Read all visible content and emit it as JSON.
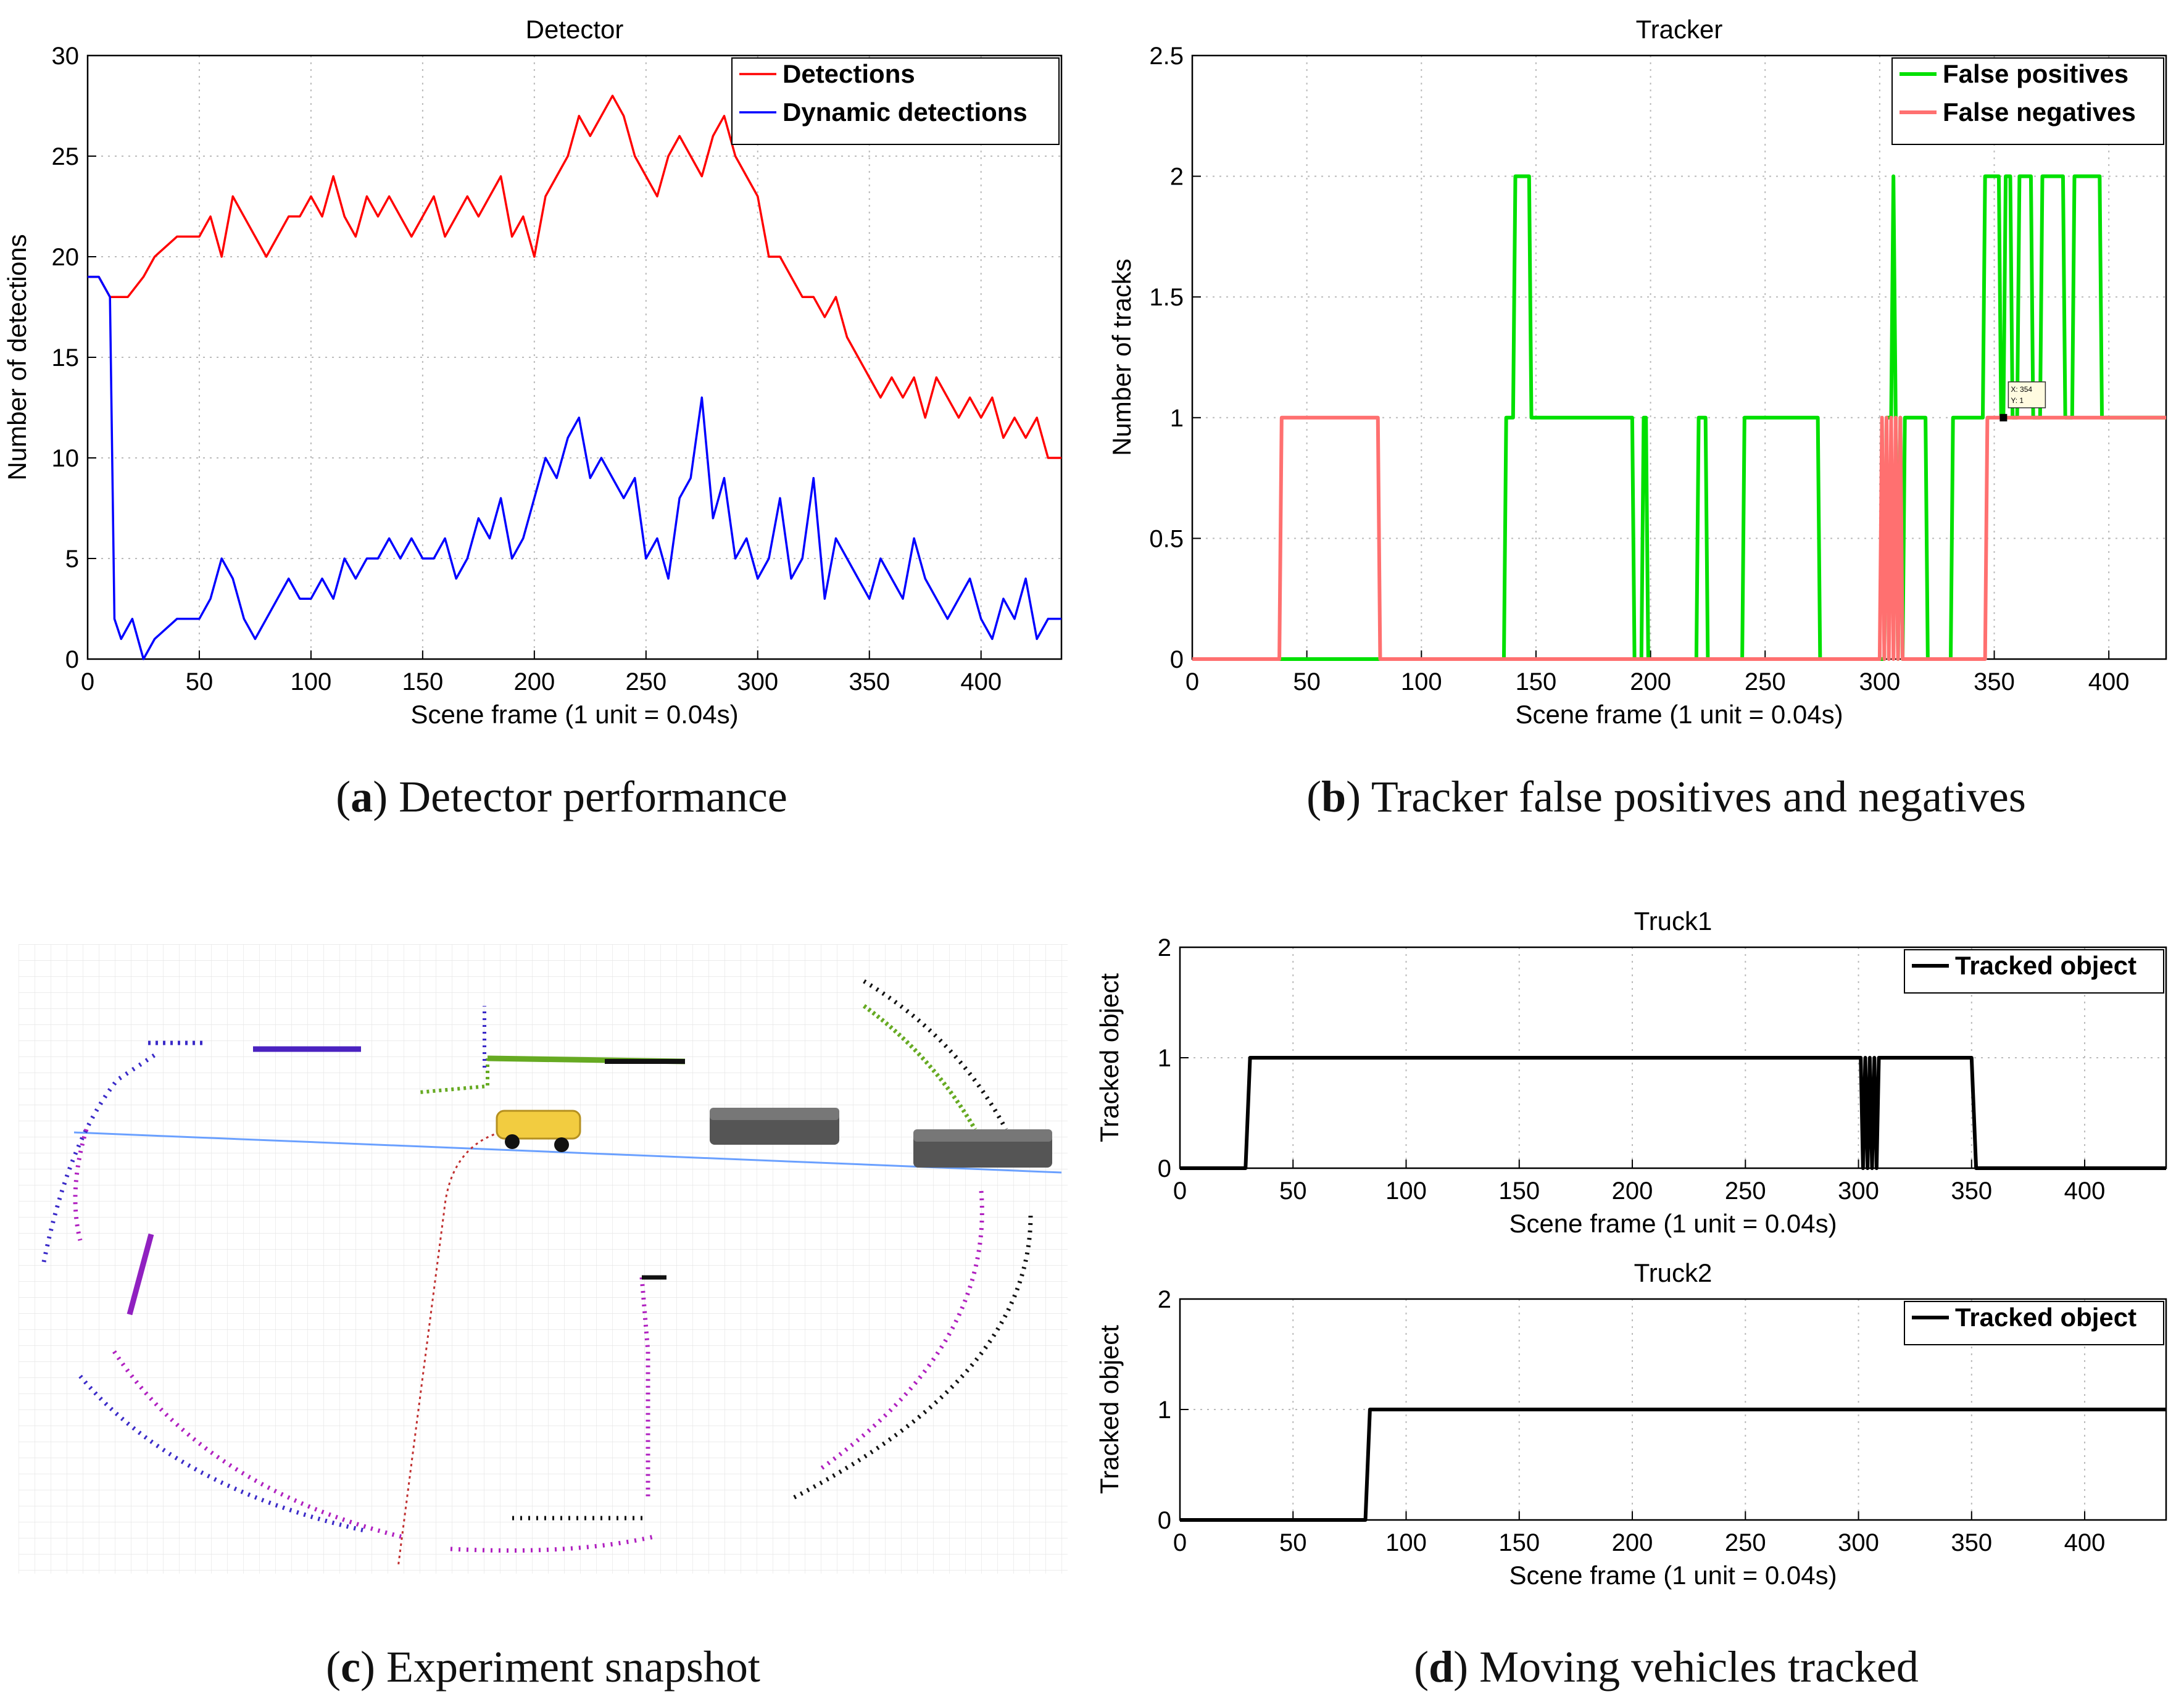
{
  "captions": {
    "a": {
      "label": "a",
      "text": "Detector performance"
    },
    "b": {
      "label": "b",
      "text": "Tracker false positives and negatives"
    },
    "c": {
      "label": "c",
      "text": "Experiment snapshot"
    },
    "d": {
      "label": "d",
      "text": "Moving vehicles tracked"
    }
  },
  "colors": {
    "detections": "#ff0000",
    "dynamic": "#0000ff",
    "false_positives": "#00e000",
    "false_negatives": "#ff7070",
    "tracked": "#000000"
  },
  "chart_data": [
    {
      "id": "detector",
      "type": "line",
      "title": "Detector",
      "xlabel": "Scene frame (1 unit = 0.04s)",
      "ylabel": "Number of detections",
      "xlim": [
        0,
        436
      ],
      "ylim": [
        0,
        30
      ],
      "xticks": [
        0,
        50,
        100,
        150,
        200,
        250,
        300,
        350,
        400
      ],
      "yticks": [
        0,
        5,
        10,
        15,
        20,
        25,
        30
      ],
      "grid": true,
      "legend_position": "top-right",
      "series": [
        {
          "name": "Detections",
          "color": "#ff0000",
          "x": [
            0,
            5,
            10,
            18,
            25,
            30,
            40,
            50,
            55,
            60,
            65,
            70,
            75,
            80,
            85,
            90,
            95,
            100,
            105,
            110,
            115,
            120,
            125,
            130,
            135,
            140,
            145,
            150,
            155,
            160,
            165,
            170,
            175,
            180,
            185,
            190,
            195,
            200,
            205,
            210,
            215,
            220,
            225,
            230,
            235,
            240,
            245,
            250,
            255,
            260,
            265,
            270,
            275,
            280,
            285,
            290,
            295,
            300,
            305,
            310,
            315,
            320,
            325,
            330,
            335,
            340,
            345,
            350,
            355,
            360,
            365,
            370,
            375,
            380,
            385,
            390,
            395,
            400,
            405,
            410,
            415,
            420,
            425,
            430,
            436
          ],
          "y": [
            19,
            19,
            18,
            18,
            19,
            20,
            21,
            21,
            22,
            20,
            23,
            22,
            21,
            20,
            21,
            22,
            22,
            23,
            22,
            24,
            22,
            21,
            23,
            22,
            23,
            22,
            21,
            22,
            23,
            21,
            22,
            23,
            22,
            23,
            24,
            21,
            22,
            20,
            23,
            24,
            25,
            27,
            26,
            27,
            28,
            27,
            25,
            24,
            23,
            25,
            26,
            25,
            24,
            26,
            27,
            25,
            24,
            23,
            20,
            20,
            19,
            18,
            18,
            17,
            18,
            16,
            15,
            14,
            13,
            14,
            13,
            14,
            12,
            14,
            13,
            12,
            13,
            12,
            13,
            11,
            12,
            11,
            12,
            10,
            10
          ]
        },
        {
          "name": "Dynamic detections",
          "color": "#0000ff",
          "x": [
            0,
            5,
            10,
            12,
            15,
            20,
            25,
            30,
            40,
            50,
            55,
            60,
            65,
            70,
            75,
            80,
            85,
            90,
            95,
            100,
            105,
            110,
            115,
            120,
            125,
            130,
            135,
            140,
            145,
            150,
            155,
            160,
            165,
            170,
            175,
            180,
            185,
            190,
            195,
            200,
            205,
            210,
            215,
            220,
            225,
            230,
            235,
            240,
            245,
            250,
            255,
            260,
            265,
            270,
            275,
            280,
            285,
            290,
            295,
            300,
            305,
            310,
            315,
            320,
            325,
            330,
            335,
            340,
            345,
            350,
            355,
            360,
            365,
            370,
            375,
            380,
            385,
            390,
            395,
            400,
            405,
            410,
            415,
            420,
            425,
            430,
            436
          ],
          "y": [
            19,
            19,
            18,
            2,
            1,
            2,
            0,
            1,
            2,
            2,
            3,
            5,
            4,
            2,
            1,
            2,
            3,
            4,
            3,
            3,
            4,
            3,
            5,
            4,
            5,
            5,
            6,
            5,
            6,
            5,
            5,
            6,
            4,
            5,
            7,
            6,
            8,
            5,
            6,
            8,
            10,
            9,
            11,
            12,
            9,
            10,
            9,
            8,
            9,
            5,
            6,
            4,
            8,
            9,
            13,
            7,
            9,
            5,
            6,
            4,
            5,
            8,
            4,
            5,
            9,
            3,
            6,
            5,
            4,
            3,
            5,
            4,
            3,
            6,
            4,
            3,
            2,
            3,
            4,
            2,
            1,
            3,
            2,
            4,
            1,
            2,
            2
          ]
        }
      ]
    },
    {
      "id": "tracker",
      "type": "line",
      "title": "Tracker",
      "xlabel": "Scene frame (1 unit = 0.04s)",
      "ylabel": "Number of tracks",
      "xlim": [
        0,
        425
      ],
      "ylim": [
        0,
        2.5
      ],
      "xticks": [
        0,
        50,
        100,
        150,
        200,
        250,
        300,
        350,
        400
      ],
      "yticks": [
        0,
        0.5,
        1,
        1.5,
        2,
        2.5
      ],
      "grid": true,
      "legend_position": "top-right",
      "datatip": {
        "x_label": "X: 354",
        "y_label": "Y: 1"
      },
      "series": [
        {
          "name": "False positives",
          "color": "#00e000",
          "x": [
            0,
            136,
            137,
            140,
            141,
            147,
            148,
            192,
            193,
            196,
            197,
            198,
            199,
            220,
            221,
            224,
            225,
            240,
            241,
            273,
            274,
            302,
            303,
            305,
            306,
            307,
            308,
            309,
            310,
            311,
            320,
            321,
            331,
            332,
            345,
            346,
            352,
            353,
            354,
            355,
            357,
            358,
            360,
            361,
            366,
            367,
            370,
            371,
            380,
            381,
            384,
            385,
            396,
            397,
            410,
            411,
            425
          ],
          "y": [
            0,
            0,
            1,
            1,
            2,
            2,
            1,
            1,
            0,
            0,
            1,
            1,
            0,
            0,
            1,
            1,
            0,
            0,
            1,
            1,
            0,
            0,
            1,
            1,
            2,
            1,
            0,
            1,
            0,
            1,
            1,
            0,
            0,
            1,
            1,
            2,
            2,
            1,
            1,
            2,
            2,
            1,
            1,
            2,
            2,
            1,
            1,
            2,
            2,
            1,
            1,
            2,
            2,
            1,
            1,
            1,
            1
          ]
        },
        {
          "name": "False negatives",
          "color": "#ff7070",
          "x": [
            0,
            38,
            39,
            81,
            82,
            300,
            301,
            302,
            303,
            304,
            305,
            306,
            307,
            308,
            309,
            310,
            311,
            346,
            347,
            425
          ],
          "y": [
            0,
            0,
            1,
            1,
            0,
            0,
            1,
            0,
            1,
            0,
            1,
            0,
            1,
            0,
            1,
            0,
            0,
            0,
            1,
            1
          ]
        }
      ]
    },
    {
      "id": "truck1",
      "type": "line",
      "title": "Truck1",
      "xlabel": "Scene frame (1 unit = 0.04s)",
      "ylabel": "Tracked object",
      "xlim": [
        0,
        436
      ],
      "ylim": [
        0,
        2
      ],
      "xticks": [
        0,
        50,
        100,
        150,
        200,
        250,
        300,
        350,
        400
      ],
      "yticks": [
        0,
        1,
        2
      ],
      "grid": true,
      "legend_position": "top-right",
      "series": [
        {
          "name": "Tracked object",
          "color": "#000000",
          "x": [
            0,
            29,
            31,
            301,
            302,
            303,
            304,
            305,
            306,
            307,
            308,
            309,
            350,
            352,
            436
          ],
          "y": [
            0,
            0,
            1,
            1,
            0,
            1,
            0,
            1,
            0,
            1,
            0,
            1,
            1,
            0,
            0
          ]
        }
      ]
    },
    {
      "id": "truck2",
      "type": "line",
      "title": "Truck2",
      "xlabel": "Scene frame (1 unit = 0.04s)",
      "ylabel": "Tracked object",
      "xlim": [
        0,
        436
      ],
      "ylim": [
        0,
        2
      ],
      "xticks": [
        0,
        50,
        100,
        150,
        200,
        250,
        300,
        350,
        400
      ],
      "yticks": [
        0,
        1,
        2
      ],
      "grid": true,
      "legend_position": "top-right",
      "series": [
        {
          "name": "Tracked object",
          "color": "#000000",
          "x": [
            0,
            82,
            84,
            436
          ],
          "y": [
            0,
            0,
            1,
            1
          ]
        }
      ]
    }
  ]
}
